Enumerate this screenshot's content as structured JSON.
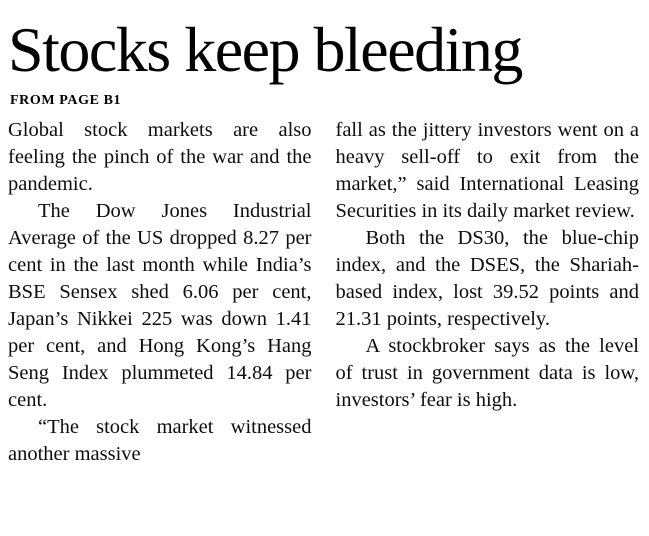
{
  "article": {
    "headline": "Stocks keep bleeding",
    "kicker": "FROM PAGE B1",
    "columns": [
      {
        "paragraphs": [
          {
            "text": "Global stock markets are also feeling the pinch of the war and the pandemic."
          },
          {
            "text": "The Dow Jones Industrial Average of the US dropped 8.27 per cent in the last month while India’s BSE Sensex shed 6.06 per cent, Japan’s Nikkei 225 was down 1.41 per cent, and Hong Kong’s Hang Seng Index plummeted 14.84 per cent."
          },
          {
            "text": "“The stock market witnessed another massive"
          }
        ]
      },
      {
        "paragraphs": [
          {
            "text": "fall as the jittery investors went on a heavy sell-off to exit from the market,” said International Leasing Securities in its daily market review."
          },
          {
            "text": "Both the DS30, the blue-chip index, and the DSES, the Shariah-based index, lost 39.52 points and 21.31 points, respectively."
          },
          {
            "text": "A stockbroker says as the level of trust in government data is low, investors’ fear is high."
          }
        ]
      }
    ]
  }
}
